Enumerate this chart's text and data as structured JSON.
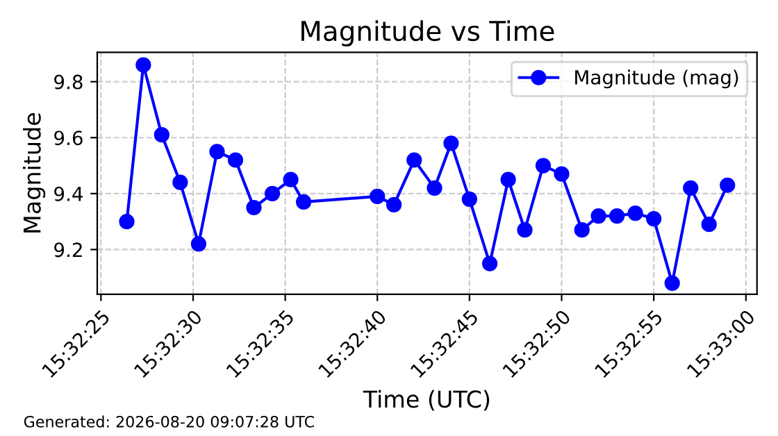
{
  "chart_data": {
    "type": "line",
    "title": "Magnitude vs Time",
    "xlabel": "Time (UTC)",
    "ylabel": "Magnitude",
    "annotations": [
      "Generated: 2026-08-20 09:07:28 UTC"
    ],
    "x": [
      15.540667,
      15.540917,
      15.541194,
      15.541472,
      15.54175,
      15.542028,
      15.542306,
      15.542583,
      15.542861,
      15.543139,
      15.543333,
      15.544444,
      15.544694,
      15.545,
      15.545306,
      15.545556,
      15.545833,
      15.546139,
      15.546417,
      15.546667,
      15.546944,
      15.547222,
      15.547528,
      15.547778,
      15.548056,
      15.548333,
      15.548611,
      15.548889,
      15.549167,
      15.549444,
      15.549722
    ],
    "series": [
      {
        "name": "Magnitude (mag)",
        "color": "#0000ff",
        "values": [
          9.3,
          9.86,
          9.61,
          9.44,
          9.22,
          9.55,
          9.52,
          9.35,
          9.4,
          9.45,
          9.37,
          9.39,
          9.36,
          9.52,
          9.42,
          9.58,
          9.38,
          9.15,
          9.45,
          9.27,
          9.5,
          9.47,
          9.27,
          9.32,
          9.32,
          9.33,
          9.31,
          9.08,
          9.42,
          9.29,
          9.43
        ]
      }
    ],
    "xlim": [
      15.540222,
      15.550167
    ],
    "ylim": [
      9.04,
      9.905
    ],
    "xticks": [
      {
        "value": 15.540278,
        "label": "15:32:25"
      },
      {
        "value": 15.541667,
        "label": "15:32:30"
      },
      {
        "value": 15.543056,
        "label": "15:32:35"
      },
      {
        "value": 15.544444,
        "label": "15:32:40"
      },
      {
        "value": 15.545833,
        "label": "15:32:45"
      },
      {
        "value": 15.547222,
        "label": "15:32:50"
      },
      {
        "value": 15.548611,
        "label": "15:32:55"
      },
      {
        "value": 15.55,
        "label": "15:33:00"
      }
    ],
    "yticks": [
      9.2,
      9.4,
      9.6,
      9.8
    ],
    "grid": true,
    "legend": "top right",
    "marker": "circle",
    "line_style": "solid"
  }
}
